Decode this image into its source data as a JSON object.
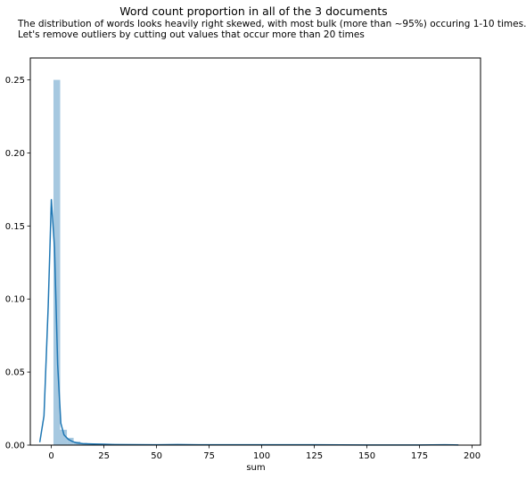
{
  "figure": {
    "title": "Word count proportion in all of the 3 documents",
    "subtitle_lines": [
      "The distribution of words looks heavily right skewed, with most bulk (more than ~95%) occuring 1-10 times.",
      "Let's remove outliers by cutting out values that occur more than 20 times"
    ]
  },
  "chart_data": {
    "type": "bar",
    "title": "Word count proportion in all of the 3 documents",
    "xlabel": "sum",
    "ylabel": "",
    "xlim": [
      -10,
      204
    ],
    "ylim": [
      0,
      0.265
    ],
    "xticks": [
      0,
      25,
      50,
      75,
      100,
      125,
      150,
      175,
      200
    ],
    "xtick_labels": [
      "0",
      "25",
      "50",
      "75",
      "100",
      "125",
      "150",
      "175",
      "200"
    ],
    "yticks": [
      0.0,
      0.05,
      0.1,
      0.15,
      0.2,
      0.25
    ],
    "ytick_labels": [
      "0.00",
      "0.05",
      "0.10",
      "0.15",
      "0.20",
      "0.25"
    ],
    "grid": false,
    "legend": "none",
    "histogram": {
      "color": "#a6c8e0",
      "bins": [
        {
          "x0": 1,
          "x1": 4.2,
          "density": 0.25
        },
        {
          "x0": 4.2,
          "x1": 7.4,
          "density": 0.0105
        },
        {
          "x0": 7.4,
          "x1": 10.6,
          "density": 0.005
        },
        {
          "x0": 10.6,
          "x1": 13.8,
          "density": 0.0025
        },
        {
          "x0": 13.8,
          "x1": 17.0,
          "density": 0.0015
        },
        {
          "x0": 17.0,
          "x1": 20.2,
          "density": 0.001
        },
        {
          "x0": 20.2,
          "x1": 23.4,
          "density": 0.0007
        },
        {
          "x0": 23.4,
          "x1": 26.6,
          "density": 0.0006
        },
        {
          "x0": 26.6,
          "x1": 29.8,
          "density": 0.0005
        },
        {
          "x0": 29.8,
          "x1": 33.0,
          "density": 0.0004
        },
        {
          "x0": 58,
          "x1": 61.2,
          "density": 0.0003
        },
        {
          "x0": 61.2,
          "x1": 64.4,
          "density": 0.0004
        },
        {
          "x0": 90,
          "x1": 93.2,
          "density": 0.0003
        },
        {
          "x0": 122,
          "x1": 125.2,
          "density": 0.0003
        },
        {
          "x0": 186,
          "x1": 189.2,
          "density": 0.0003
        }
      ]
    },
    "kde": {
      "color": "#1f77b4",
      "points": [
        [
          -5.5,
          0.002
        ],
        [
          -3.5,
          0.02
        ],
        [
          -1.5,
          0.095
        ],
        [
          0.0,
          0.168
        ],
        [
          1.5,
          0.135
        ],
        [
          3.0,
          0.055
        ],
        [
          4.5,
          0.015
        ],
        [
          6.0,
          0.007
        ],
        [
          8.0,
          0.004
        ],
        [
          10.0,
          0.0025
        ],
        [
          12.0,
          0.0015
        ],
        [
          15.0,
          0.001
        ],
        [
          20.0,
          0.0008
        ],
        [
          25.0,
          0.0006
        ],
        [
          30.0,
          0.0004
        ],
        [
          40.0,
          0.0003
        ],
        [
          50.0,
          0.0002
        ],
        [
          60.0,
          0.0004
        ],
        [
          70.0,
          0.0002
        ],
        [
          90.0,
          0.0002
        ],
        [
          110.0,
          0.0002
        ],
        [
          125.0,
          0.0002
        ],
        [
          150.0,
          0.0001
        ],
        [
          175.0,
          0.0001
        ],
        [
          187.0,
          0.0002
        ],
        [
          193.5,
          0.0001
        ]
      ]
    }
  }
}
